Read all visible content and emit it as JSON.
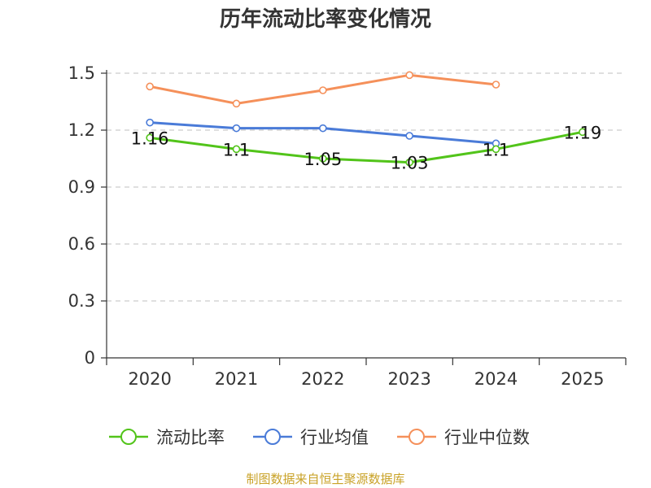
{
  "chart_data": {
    "type": "line",
    "title": "历年流动比率变化情况",
    "categories": [
      "2020",
      "2021",
      "2022",
      "2023",
      "2024",
      "2025"
    ],
    "yticks": [
      "0",
      "0.3",
      "0.6",
      "0.9",
      "1.2",
      "1.5"
    ],
    "ylim": [
      0,
      1.5
    ],
    "grid": true,
    "legend_position": "bottom",
    "series": [
      {
        "name": "流动比率",
        "color": "#52c41a",
        "values": [
          1.16,
          1.1,
          1.05,
          1.03,
          1.1,
          1.19
        ],
        "labels": [
          "1.16",
          "1.1",
          "1.05",
          "1.03",
          "1.1",
          "1.19"
        ]
      },
      {
        "name": "行业均值",
        "color": "#4a7bd8",
        "values": [
          1.24,
          1.21,
          1.21,
          1.17,
          1.13,
          null
        ]
      },
      {
        "name": "行业中位数",
        "color": "#f5905a",
        "values": [
          1.43,
          1.34,
          1.41,
          1.49,
          1.44,
          null
        ]
      }
    ]
  },
  "source": {
    "text": "制图数据来自恒生聚源数据库",
    "color": "#c9a227"
  }
}
